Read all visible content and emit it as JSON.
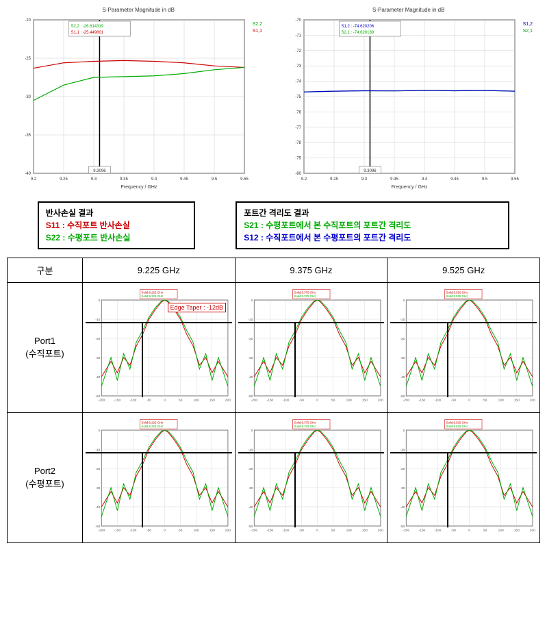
{
  "top_left": {
    "title": "S-Parameter Magnitude in dB",
    "type": "line",
    "xlabel": "Frequency / GHz",
    "xlim": [
      9.2,
      9.55
    ],
    "xticks": [
      9.2,
      9.25,
      9.3,
      9.35,
      9.4,
      9.45,
      9.5,
      9.55
    ],
    "ylim": [
      -40,
      -20
    ],
    "yticks": [
      -20,
      -25,
      -30,
      -35,
      -40
    ],
    "marker_x": 9.3096,
    "marker_x_label": "9.3096",
    "marker_labels": [
      "S2,2 : -26.614319",
      "S1,1 : -25.449801"
    ],
    "marker_colors": [
      "#00aa00",
      "#cc0000"
    ],
    "legend_right": [
      "S2,2",
      "S1,1"
    ],
    "legend_right_colors": [
      "#00aa00",
      "#cc0000"
    ],
    "grid_color": "#cccccc",
    "axis_color": "#000000",
    "background_color": "#ffffff",
    "series": [
      {
        "name": "S1,1",
        "color": "#cc0000",
        "width": 1.2,
        "x": [
          9.2,
          9.25,
          9.3,
          9.35,
          9.4,
          9.45,
          9.5,
          9.55
        ],
        "y": [
          -26.3,
          -25.6,
          -25.4,
          -25.3,
          -25.4,
          -25.6,
          -26.0,
          -26.2
        ]
      },
      {
        "name": "S2,2",
        "color": "#00aa00",
        "width": 1.2,
        "x": [
          9.2,
          9.25,
          9.3,
          9.35,
          9.4,
          9.45,
          9.5,
          9.55
        ],
        "y": [
          -30.5,
          -28.5,
          -27.5,
          -27.4,
          -27.3,
          -27.0,
          -26.5,
          -26.2
        ]
      }
    ]
  },
  "top_right": {
    "title": "S-Parameter Magnitude in dB",
    "type": "line",
    "xlabel": "Frequency / GHz",
    "xlim": [
      9.2,
      9.55
    ],
    "xticks": [
      9.2,
      9.25,
      9.3,
      9.35,
      9.4,
      9.45,
      9.5,
      9.55
    ],
    "ylim": [
      -80,
      -70
    ],
    "yticks": [
      -70,
      -71,
      -72,
      -73,
      -74,
      -75,
      -76,
      -77,
      -78,
      -79,
      -80
    ],
    "marker_x": 9.3096,
    "marker_x_label": "9.3096",
    "marker_labels": [
      "S1,2 : -74.620206",
      "S2,1 : -74.620189"
    ],
    "marker_colors": [
      "#0000cc",
      "#00aa00"
    ],
    "legend_right": [
      "S1,2",
      "S2,1"
    ],
    "legend_right_colors": [
      "#0000cc",
      "#00aa00"
    ],
    "grid_color": "#cccccc",
    "axis_color": "#000000",
    "background_color": "#ffffff",
    "series": [
      {
        "name": "S2,1",
        "color": "#00aa00",
        "width": 1.2,
        "x": [
          9.2,
          9.25,
          9.3,
          9.35,
          9.4,
          9.45,
          9.5,
          9.55
        ],
        "y": [
          -74.7,
          -74.65,
          -74.62,
          -74.63,
          -74.6,
          -74.62,
          -74.6,
          -74.65
        ]
      },
      {
        "name": "S1,2",
        "color": "#0000cc",
        "width": 1.2,
        "x": [
          9.2,
          9.25,
          9.3,
          9.35,
          9.4,
          9.45,
          9.5,
          9.55
        ],
        "y": [
          -74.7,
          -74.65,
          -74.62,
          -74.63,
          -74.6,
          -74.62,
          -74.6,
          -74.65
        ]
      }
    ]
  },
  "legend_left": {
    "title": "반사손실 결과",
    "s11": "S11 : 수직포트 반사손실",
    "s22": "S22 : 수평포트 반사손실"
  },
  "legend_right": {
    "title": "포트간 격리도 결과",
    "s21": "S21 : 수평포트에서 본 수직포트의 포트간  격리도",
    "s12": "S12 : 수직포트에서 본 수평포트의 포트간 격리도"
  },
  "table": {
    "header": [
      "구분",
      "9.225 GHz",
      "9.375 GHz",
      "9.525 GHz"
    ],
    "rows": [
      {
        "label": "Port1",
        "sublabel": "(수직포트)",
        "edge_taper": "Edge Taper : -12dB",
        "edge_taper_show": [
          true,
          false,
          false
        ],
        "freqs": [
          "9.225",
          "9.375",
          "9.525"
        ]
      },
      {
        "label": "Port2",
        "sublabel": "(수평포트)",
        "edge_taper_show": [
          false,
          false,
          false
        ],
        "freqs": [
          "9.225",
          "9.375",
          "9.525"
        ]
      }
    ],
    "pattern": {
      "type": "radiation-pattern",
      "xlim": [
        -200,
        200
      ],
      "xticks": [
        -200,
        -150,
        -100,
        -50,
        0,
        50,
        100,
        150,
        200
      ],
      "ylim": [
        -50,
        0
      ],
      "yticks": [
        0,
        -10,
        -20,
        -30,
        -40,
        -50
      ],
      "grid_color": "#cccccc",
      "axis_color": "#000000",
      "background_color": "#ffffff",
      "hline_y": -12,
      "vline_x": -72,
      "vline_top_y": -12,
      "series_colors": [
        "#cc0000",
        "#00aa00"
      ],
      "marker_legend_colors": [
        "#cc0000",
        "#00aa00"
      ],
      "marker_legend_prefix": [
        "Solid:",
        "Solid:"
      ],
      "series": [
        {
          "color": "#cc0000",
          "x": [
            -200,
            -170,
            -150,
            -130,
            -110,
            -90,
            -70,
            -50,
            -30,
            -10,
            0,
            10,
            30,
            50,
            70,
            90,
            110,
            130,
            150,
            170,
            200
          ],
          "y": [
            -40,
            -32,
            -38,
            -30,
            -34,
            -24,
            -18,
            -10,
            -5,
            -1,
            0,
            -1,
            -5,
            -10,
            -18,
            -24,
            -34,
            -30,
            -38,
            -32,
            -40
          ]
        },
        {
          "color": "#00aa00",
          "x": [
            -200,
            -170,
            -150,
            -130,
            -110,
            -90,
            -70,
            -50,
            -30,
            -10,
            0,
            10,
            30,
            50,
            70,
            90,
            110,
            130,
            150,
            170,
            200
          ],
          "y": [
            -45,
            -30,
            -42,
            -28,
            -36,
            -22,
            -16,
            -9,
            -4,
            -0.5,
            0,
            -0.5,
            -4,
            -9,
            -16,
            -22,
            -36,
            -28,
            -42,
            -30,
            -45
          ]
        }
      ]
    }
  },
  "fonts": {
    "axis_label": 7,
    "tick": 6
  }
}
